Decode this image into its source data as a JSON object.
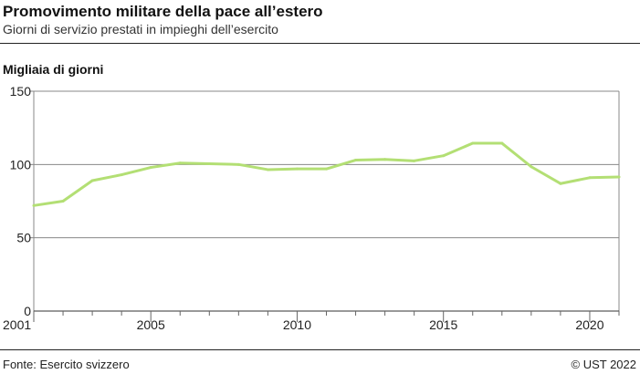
{
  "header": {
    "title": "Promovimento militare della pace all’estero",
    "subtitle": "Giorni di servizio prestati in impieghi dell’esercito"
  },
  "footer": {
    "source": "Fonte: Esercito svizzero",
    "copyright": "© UST 2022"
  },
  "chart_data": {
    "type": "line",
    "title": "Promovimento militare della pace all’estero",
    "subtitle": "Giorni di servizio prestati in impieghi dell’esercito",
    "ylabel": "Migliaia di giorni",
    "xlabel": "",
    "xlim": [
      2001,
      2021
    ],
    "ylim": [
      0,
      150
    ],
    "yticks": [
      0,
      50,
      100,
      150
    ],
    "xticks": [
      2001,
      2005,
      2010,
      2015,
      2020
    ],
    "grid": "horizontal",
    "color": "#b3df74",
    "x": [
      2001,
      2002,
      2003,
      2004,
      2005,
      2006,
      2007,
      2008,
      2009,
      2010,
      2011,
      2012,
      2013,
      2014,
      2015,
      2016,
      2017,
      2018,
      2019,
      2020,
      2021
    ],
    "values": [
      72,
      75,
      89,
      93,
      98,
      101,
      100.5,
      100,
      96.5,
      97,
      97,
      103,
      103.5,
      102.5,
      106,
      114.5,
      114.5,
      98.5,
      87,
      91,
      91.5
    ]
  }
}
